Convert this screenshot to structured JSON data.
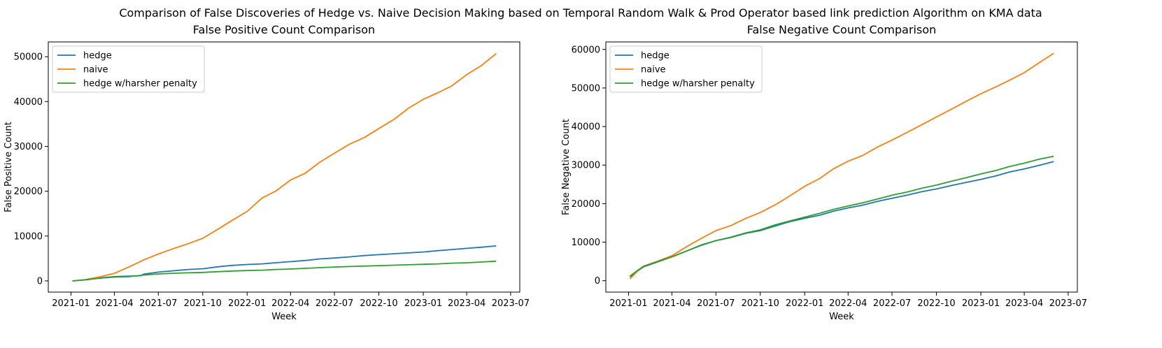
{
  "figure": {
    "suptitle": "Comparison of False Discoveries of Hedge vs. Naive Decision Making based on Temporal Random Walk & Prod Operator based link prediction Algorithm on KMA data"
  },
  "colors": {
    "hedge": "#1f77b4",
    "naive": "#ff7f0e",
    "hedge_harsh": "#2ca02c"
  },
  "chart_data": [
    {
      "type": "line",
      "title": "False Positive Count Comparison",
      "xlabel": "Week",
      "ylabel": "False Positive Count",
      "xlim": [
        "2020-11-15",
        "2023-07-20"
      ],
      "ylim": [
        -2500,
        53300
      ],
      "x_ticks": [
        "2021-01",
        "2021-04",
        "2021-07",
        "2021-10",
        "2022-01",
        "2022-04",
        "2022-07",
        "2022-10",
        "2023-01",
        "2023-04",
        "2023-07"
      ],
      "y_ticks": [
        0,
        10000,
        20000,
        30000,
        40000,
        50000
      ],
      "legend": "top-left",
      "grid": false,
      "series": [
        {
          "name": "hedge",
          "color": "#1f77b4",
          "points": [
            [
              "2021-01-04",
              0
            ],
            [
              "2021-02-01",
              250
            ],
            [
              "2021-03-01",
              650
            ],
            [
              "2021-04-01",
              950
            ],
            [
              "2021-05-01",
              1050
            ],
            [
              "2021-05-25",
              1150
            ],
            [
              "2021-06-01",
              1500
            ],
            [
              "2021-07-01",
              1950
            ],
            [
              "2021-08-01",
              2250
            ],
            [
              "2021-09-01",
              2550
            ],
            [
              "2021-10-01",
              2700
            ],
            [
              "2021-11-01",
              3150
            ],
            [
              "2021-12-01",
              3450
            ],
            [
              "2022-01-01",
              3650
            ],
            [
              "2022-02-01",
              3800
            ],
            [
              "2022-03-01",
              4050
            ],
            [
              "2022-04-01",
              4300
            ],
            [
              "2022-05-01",
              4550
            ],
            [
              "2022-06-01",
              4900
            ],
            [
              "2022-07-01",
              5100
            ],
            [
              "2022-08-01",
              5350
            ],
            [
              "2022-09-01",
              5650
            ],
            [
              "2022-10-01",
              5850
            ],
            [
              "2022-11-01",
              6050
            ],
            [
              "2022-12-01",
              6250
            ],
            [
              "2023-01-01",
              6450
            ],
            [
              "2023-02-01",
              6750
            ],
            [
              "2023-03-01",
              7000
            ],
            [
              "2023-04-01",
              7250
            ],
            [
              "2023-05-01",
              7500
            ],
            [
              "2023-06-01",
              7800
            ]
          ]
        },
        {
          "name": "naive",
          "color": "#ff7f0e",
          "points": [
            [
              "2021-01-04",
              0
            ],
            [
              "2021-02-01",
              300
            ],
            [
              "2021-03-01",
              900
            ],
            [
              "2021-04-01",
              1700
            ],
            [
              "2021-05-01",
              3100
            ],
            [
              "2021-06-01",
              4700
            ],
            [
              "2021-07-01",
              6000
            ],
            [
              "2021-08-01",
              7200
            ],
            [
              "2021-09-01",
              8300
            ],
            [
              "2021-10-01",
              9500
            ],
            [
              "2021-11-01",
              11500
            ],
            [
              "2021-12-01",
              13500
            ],
            [
              "2022-01-01",
              15500
            ],
            [
              "2022-02-01",
              18500
            ],
            [
              "2022-03-01",
              20000
            ],
            [
              "2022-04-01",
              22500
            ],
            [
              "2022-05-01",
              24000
            ],
            [
              "2022-06-01",
              26500
            ],
            [
              "2022-07-01",
              28500
            ],
            [
              "2022-08-01",
              30500
            ],
            [
              "2022-09-01",
              32000
            ],
            [
              "2022-10-01",
              34000
            ],
            [
              "2022-11-01",
              36000
            ],
            [
              "2022-12-01",
              38500
            ],
            [
              "2023-01-01",
              40500
            ],
            [
              "2023-02-01",
              42000
            ],
            [
              "2023-03-01",
              43500
            ],
            [
              "2023-04-01",
              46000
            ],
            [
              "2023-05-01",
              48000
            ],
            [
              "2023-06-01",
              50700
            ]
          ]
        },
        {
          "name": "hedge w/harsher penalty",
          "color": "#2ca02c",
          "points": [
            [
              "2021-01-04",
              0
            ],
            [
              "2021-02-01",
              250
            ],
            [
              "2021-03-01",
              600
            ],
            [
              "2021-04-01",
              850
            ],
            [
              "2021-05-01",
              950
            ],
            [
              "2021-06-01",
              1300
            ],
            [
              "2021-07-01",
              1550
            ],
            [
              "2021-08-01",
              1700
            ],
            [
              "2021-09-01",
              1800
            ],
            [
              "2021-10-01",
              1900
            ],
            [
              "2021-11-01",
              2050
            ],
            [
              "2021-12-01",
              2200
            ],
            [
              "2022-01-01",
              2300
            ],
            [
              "2022-02-01",
              2400
            ],
            [
              "2022-03-01",
              2550
            ],
            [
              "2022-04-01",
              2650
            ],
            [
              "2022-05-01",
              2800
            ],
            [
              "2022-06-01",
              2950
            ],
            [
              "2022-07-01",
              3100
            ],
            [
              "2022-08-01",
              3200
            ],
            [
              "2022-09-01",
              3300
            ],
            [
              "2022-10-01",
              3400
            ],
            [
              "2022-11-01",
              3500
            ],
            [
              "2022-12-01",
              3600
            ],
            [
              "2023-01-01",
              3700
            ],
            [
              "2023-02-01",
              3800
            ],
            [
              "2023-03-01",
              3950
            ],
            [
              "2023-04-01",
              4050
            ],
            [
              "2023-05-01",
              4200
            ],
            [
              "2023-06-01",
              4400
            ]
          ]
        }
      ]
    },
    {
      "type": "line",
      "title": "False Negative Count Comparison",
      "xlabel": "Week",
      "ylabel": "False Negative Count",
      "xlim": [
        "2020-11-15",
        "2023-07-20"
      ],
      "ylim": [
        -2950,
        61950
      ],
      "x_ticks": [
        "2021-01",
        "2021-04",
        "2021-07",
        "2021-10",
        "2022-01",
        "2022-04",
        "2022-07",
        "2022-10",
        "2023-01",
        "2023-04",
        "2023-07"
      ],
      "y_ticks": [
        0,
        10000,
        20000,
        30000,
        40000,
        50000,
        60000
      ],
      "legend": "top-left",
      "grid": false,
      "series": [
        {
          "name": "hedge",
          "color": "#1f77b4",
          "points": [
            [
              "2021-01-04",
              1000
            ],
            [
              "2021-01-20",
              2500
            ],
            [
              "2021-02-01",
              3600
            ],
            [
              "2021-03-01",
              4800
            ],
            [
              "2021-04-01",
              6200
            ],
            [
              "2021-05-01",
              7700
            ],
            [
              "2021-06-01",
              9200
            ],
            [
              "2021-07-01",
              10400
            ],
            [
              "2021-08-01",
              11200
            ],
            [
              "2021-09-01",
              12300
            ],
            [
              "2021-10-01",
              13000
            ],
            [
              "2021-11-01",
              14200
            ],
            [
              "2021-12-01",
              15300
            ],
            [
              "2022-01-01",
              16200
            ],
            [
              "2022-02-01",
              17000
            ],
            [
              "2022-03-01",
              18000
            ],
            [
              "2022-04-01",
              18900
            ],
            [
              "2022-05-01",
              19600
            ],
            [
              "2022-06-01",
              20600
            ],
            [
              "2022-07-01",
              21400
            ],
            [
              "2022-08-01",
              22200
            ],
            [
              "2022-09-01",
              23100
            ],
            [
              "2022-10-01",
              23800
            ],
            [
              "2022-11-01",
              24700
            ],
            [
              "2022-12-01",
              25500
            ],
            [
              "2023-01-01",
              26300
            ],
            [
              "2023-02-01",
              27200
            ],
            [
              "2023-03-01",
              28200
            ],
            [
              "2023-04-01",
              29000
            ],
            [
              "2023-05-01",
              29900
            ],
            [
              "2023-06-01",
              30900
            ]
          ]
        },
        {
          "name": "naive",
          "color": "#ff7f0e",
          "points": [
            [
              "2021-01-04",
              500
            ],
            [
              "2021-01-20",
              2500
            ],
            [
              "2021-02-01",
              3800
            ],
            [
              "2021-03-01",
              5000
            ],
            [
              "2021-04-01",
              6500
            ],
            [
              "2021-05-01",
              8800
            ],
            [
              "2021-06-01",
              11000
            ],
            [
              "2021-07-01",
              13000
            ],
            [
              "2021-08-01",
              14300
            ],
            [
              "2021-09-01",
              16200
            ],
            [
              "2021-10-01",
              17700
            ],
            [
              "2021-11-01",
              19700
            ],
            [
              "2021-12-01",
              22000
            ],
            [
              "2022-01-01",
              24500
            ],
            [
              "2022-02-01",
              26500
            ],
            [
              "2022-03-01",
              29000
            ],
            [
              "2022-04-01",
              31000
            ],
            [
              "2022-05-01",
              32500
            ],
            [
              "2022-06-01",
              34700
            ],
            [
              "2022-07-01",
              36500
            ],
            [
              "2022-08-01",
              38500
            ],
            [
              "2022-09-01",
              40500
            ],
            [
              "2022-10-01",
              42500
            ],
            [
              "2022-11-01",
              44500
            ],
            [
              "2022-12-01",
              46500
            ],
            [
              "2023-01-01",
              48500
            ],
            [
              "2023-02-01",
              50300
            ],
            [
              "2023-03-01",
              52000
            ],
            [
              "2023-04-01",
              54000
            ],
            [
              "2023-05-01",
              56500
            ],
            [
              "2023-06-01",
              59000
            ]
          ]
        },
        {
          "name": "hedge w/harsher penalty",
          "color": "#2ca02c",
          "points": [
            [
              "2021-01-04",
              1200
            ],
            [
              "2021-01-20",
              2700
            ],
            [
              "2021-02-01",
              3700
            ],
            [
              "2021-03-01",
              4900
            ],
            [
              "2021-04-01",
              6200
            ],
            [
              "2021-05-01",
              7700
            ],
            [
              "2021-06-01",
              9300
            ],
            [
              "2021-07-01",
              10400
            ],
            [
              "2021-08-01",
              11300
            ],
            [
              "2021-09-01",
              12400
            ],
            [
              "2021-10-01",
              13200
            ],
            [
              "2021-11-01",
              14500
            ],
            [
              "2021-12-01",
              15500
            ],
            [
              "2022-01-01",
              16500
            ],
            [
              "2022-02-01",
              17500
            ],
            [
              "2022-03-01",
              18500
            ],
            [
              "2022-04-01",
              19400
            ],
            [
              "2022-05-01",
              20200
            ],
            [
              "2022-06-01",
              21200
            ],
            [
              "2022-07-01",
              22200
            ],
            [
              "2022-08-01",
              23000
            ],
            [
              "2022-09-01",
              24000
            ],
            [
              "2022-10-01",
              24800
            ],
            [
              "2022-11-01",
              25800
            ],
            [
              "2022-12-01",
              26700
            ],
            [
              "2023-01-01",
              27700
            ],
            [
              "2023-02-01",
              28600
            ],
            [
              "2023-03-01",
              29600
            ],
            [
              "2023-04-01",
              30500
            ],
            [
              "2023-05-01",
              31500
            ],
            [
              "2023-06-01",
              32300
            ]
          ]
        }
      ]
    }
  ]
}
